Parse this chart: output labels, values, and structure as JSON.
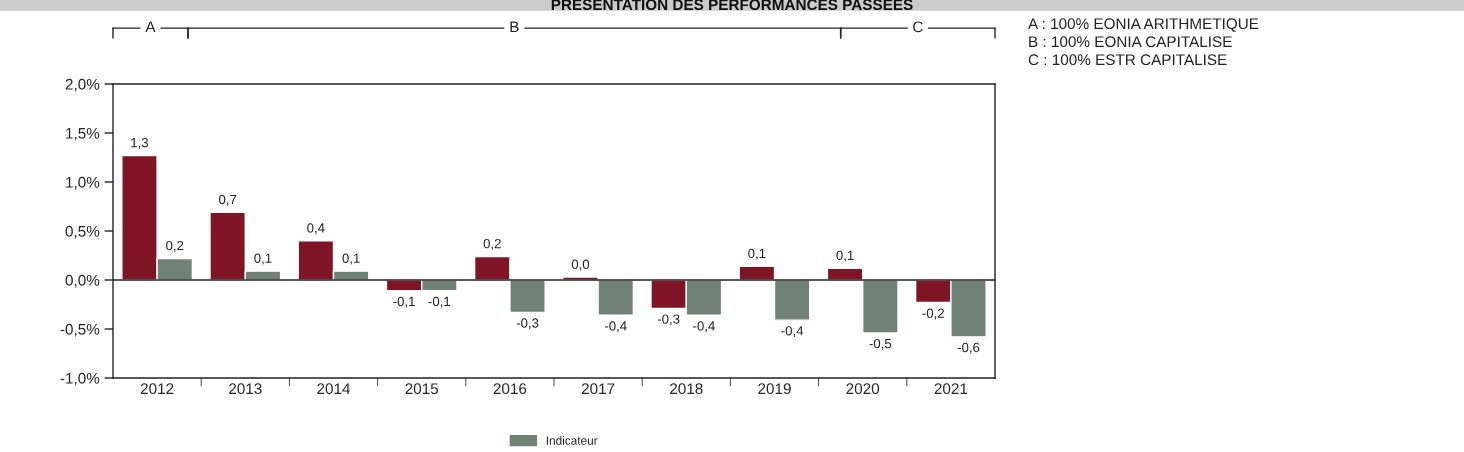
{
  "chart_data": {
    "type": "bar",
    "title": "PRESENTATION DES PERFORMANCES PASSEES",
    "categories": [
      "2012",
      "2013",
      "2014",
      "2015",
      "2016",
      "2017",
      "2018",
      "2019",
      "2020",
      "2021"
    ],
    "series": [
      {
        "color": "#7f1425",
        "values": [
          1.27,
          0.69,
          0.4,
          -0.11,
          0.24,
          0.03,
          -0.29,
          0.14,
          0.12,
          -0.23
        ],
        "value_labels": [
          "1,3",
          "0,7",
          "0,4",
          "-0,1",
          "0,2",
          "0,0",
          "-0,3",
          "0,1",
          "0,1",
          "-0,2"
        ]
      },
      {
        "name": "Indicateur",
        "color": "#718276",
        "values": [
          0.22,
          0.09,
          0.09,
          -0.11,
          -0.33,
          -0.36,
          -0.36,
          -0.41,
          -0.54,
          -0.58
        ],
        "value_labels": [
          "0,2",
          "0,1",
          "0,1",
          "-0,1",
          "-0,3",
          "-0,4",
          "-0,4",
          "-0,4",
          "-0,5",
          "-0,6"
        ]
      }
    ],
    "ylim": [
      -1.0,
      2.0
    ],
    "yticks": [
      {
        "value": -1.0,
        "label": "-1,0%"
      },
      {
        "value": -0.5,
        "label": "-0,5%"
      },
      {
        "value": 0.0,
        "label": "0,0%"
      },
      {
        "value": 0.5,
        "label": "0,5%"
      },
      {
        "value": 1.0,
        "label": "1,0%"
      },
      {
        "value": 1.5,
        "label": "1,5%"
      },
      {
        "value": 2.0,
        "label": "2,0%"
      }
    ],
    "annotations": [
      "A",
      "B",
      "C",
      "A : 100% EONIA ARITHMETIQUE",
      "B : 100% EONIA CAPITALISE",
      "C : 100% ESTR CAPITALISE"
    ],
    "legend": "bottom"
  }
}
